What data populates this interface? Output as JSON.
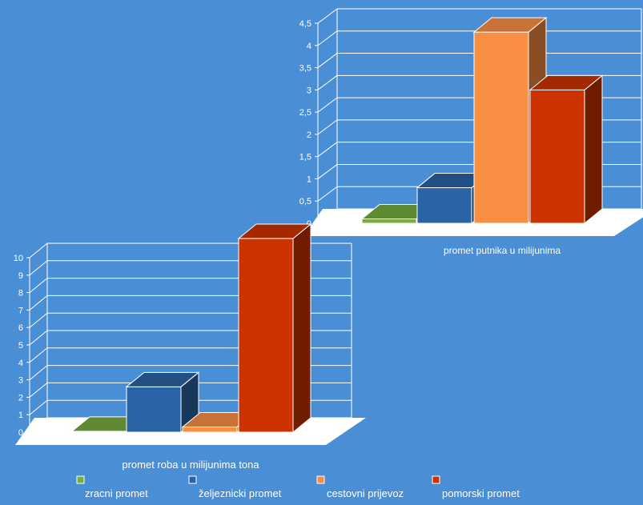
{
  "chart_data": [
    {
      "type": "bar",
      "variant": "3d",
      "category_label": "promet putnika u milijunima",
      "series": [
        {
          "name": "zracni promet",
          "value": 0.1
        },
        {
          "name": "željeznicki promet",
          "value": 0.8
        },
        {
          "name": "cestovni prijevoz",
          "value": 4.3
        },
        {
          "name": "pomorski promet",
          "value": 3.0
        }
      ],
      "ylim": [
        0,
        4.5
      ],
      "yticks": [
        "0",
        "0,5",
        "1",
        "1,5",
        "2",
        "2,5",
        "3",
        "3,5",
        "4",
        "4,5"
      ],
      "grid": true
    },
    {
      "type": "bar",
      "variant": "3d",
      "category_label": "promet roba u milijunima tona",
      "series": [
        {
          "name": "zracni promet",
          "value": 0.05
        },
        {
          "name": "željeznicki promet",
          "value": 2.6
        },
        {
          "name": "cestovni prijevoz",
          "value": 0.3
        },
        {
          "name": "pomorski promet",
          "value": 11.1
        }
      ],
      "ylim": [
        0,
        10
      ],
      "yticks": [
        "0",
        "1",
        "2",
        "3",
        "4",
        "5",
        "6",
        "7",
        "8",
        "9",
        "10"
      ],
      "grid": true
    }
  ],
  "legend": [
    {
      "label": "zracni promet",
      "color": "#77ac3f"
    },
    {
      "label": "željeznicki promet",
      "color": "#2a64a6"
    },
    {
      "label": "cestovni prijevoz",
      "color": "#fa8e43"
    },
    {
      "label": "pomorski promet",
      "color": "#cc3300"
    }
  ],
  "colors": {
    "background": "#4a8fd6",
    "grid": "#ffffff",
    "text": "#ffffff"
  }
}
